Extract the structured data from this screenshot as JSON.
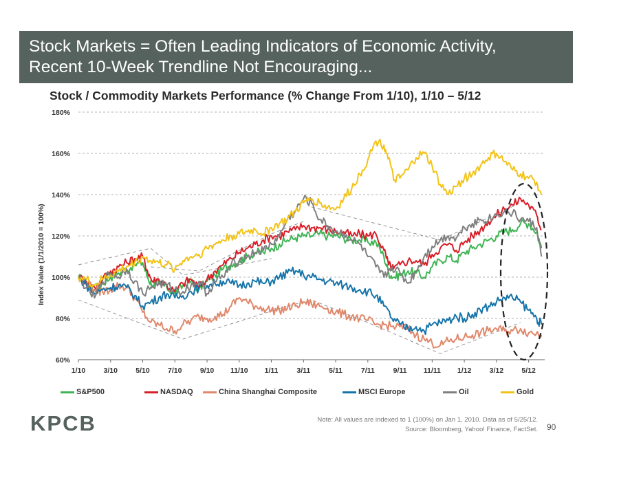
{
  "header": {
    "title_line1": "Stock Markets = Often Leading Indicators of Economic Activity,",
    "title_line2": "Recent 10-Week Trendline Not Encouraging..."
  },
  "chart_data": {
    "type": "line",
    "title": "Stock / Commodity Markets Performance (% Change From 1/10), 1/10 – 5/12",
    "ylabel": "Index Value (1/1/2010 = 100%)",
    "xlabel": "",
    "x_ticks": [
      "1/10",
      "3/10",
      "5/10",
      "7/10",
      "9/10",
      "11/10",
      "1/11",
      "3/11",
      "5/11",
      "7/11",
      "9/11",
      "11/11",
      "1/12",
      "3/12",
      "5/12"
    ],
    "y_ticks": [
      "60%",
      "80%",
      "100%",
      "120%",
      "140%",
      "160%",
      "180%"
    ],
    "ylim": [
      60,
      180
    ],
    "x_range_months": [
      0,
      29
    ],
    "grid": "horizontal dashed",
    "legend": "bottom",
    "series": [
      {
        "name": "S&P500",
        "color": "#3fb454",
        "x": [
          0,
          0.5,
          1,
          1.5,
          2,
          2.5,
          3,
          3.5,
          4,
          4.3,
          4.6,
          5,
          5.5,
          6,
          6.5,
          7,
          7.5,
          8,
          8.5,
          9,
          9.5,
          10,
          10.5,
          11,
          11.5,
          12,
          12.5,
          13,
          13.5,
          14,
          14.5,
          15,
          15.5,
          16,
          16.5,
          17,
          17.5,
          18,
          18.5,
          19,
          19.3,
          19.6,
          20,
          20.5,
          21,
          21.5,
          22,
          22.5,
          23,
          23.5,
          24,
          24.5,
          25,
          25.5,
          26,
          26.5,
          27,
          27.5,
          28,
          28.5,
          28.8
        ],
        "y": [
          100,
          97,
          94,
          97,
          100,
          102,
          104,
          106,
          107,
          100,
          96,
          97,
          95,
          92,
          96,
          98,
          94,
          98,
          101,
          104,
          106,
          108,
          110,
          112,
          112,
          114,
          116,
          118,
          119,
          120,
          120,
          121,
          120,
          120,
          119,
          118,
          118,
          117,
          117,
          110,
          102,
          100,
          101,
          103,
          102,
          100,
          105,
          108,
          110,
          108,
          112,
          114,
          116,
          118,
          120,
          122,
          123,
          126,
          126,
          122,
          114
        ]
      },
      {
        "name": "NASDAQ",
        "color": "#d81e28",
        "x": [
          0,
          0.5,
          1,
          1.5,
          2,
          2.5,
          3,
          3.5,
          4,
          4.3,
          4.6,
          5,
          5.5,
          6,
          6.5,
          7,
          7.5,
          8,
          8.5,
          9,
          9.5,
          10,
          10.5,
          11,
          11.5,
          12,
          12.5,
          13,
          13.5,
          14,
          14.5,
          15,
          15.5,
          16,
          16.5,
          17,
          17.5,
          18,
          18.5,
          19,
          19.3,
          19.6,
          20,
          20.5,
          21,
          21.5,
          22,
          22.5,
          23,
          23.5,
          24,
          24.5,
          25,
          25.5,
          26,
          26.5,
          27,
          27.5,
          28,
          28.5,
          28.8
        ],
        "y": [
          100,
          98,
          95,
          99,
          103,
          105,
          107,
          109,
          110,
          103,
          98,
          99,
          96,
          93,
          97,
          99,
          95,
          99,
          103,
          106,
          109,
          112,
          114,
          116,
          118,
          120,
          120,
          122,
          123,
          125,
          124,
          124,
          123,
          122,
          122,
          120,
          121,
          120,
          121,
          113,
          106,
          104,
          106,
          108,
          108,
          106,
          111,
          114,
          116,
          113,
          117,
          120,
          123,
          127,
          130,
          133,
          135,
          138,
          135,
          130,
          123
        ]
      },
      {
        "name": "China Shanghai Composite",
        "color": "#e0876a",
        "x": [
          0,
          0.5,
          1,
          1.5,
          2,
          2.5,
          3,
          3.5,
          4,
          4.5,
          5,
          5.5,
          6,
          6.5,
          7,
          7.5,
          8,
          8.5,
          9,
          9.5,
          10,
          10.5,
          11,
          11.5,
          12,
          12.5,
          13,
          13.5,
          14,
          14.5,
          15,
          15.5,
          16,
          16.5,
          17,
          17.5,
          18,
          18.5,
          19,
          19.5,
          20,
          20.5,
          21,
          21.5,
          22,
          22.5,
          23,
          23.5,
          24,
          24.5,
          25,
          25.5,
          26,
          26.5,
          27,
          27.5,
          28,
          28.5,
          28.8
        ],
        "y": [
          100,
          97,
          94,
          93,
          94,
          96,
          95,
          90,
          83,
          78,
          77,
          75,
          74,
          77,
          79,
          81,
          80,
          81,
          82,
          86,
          90,
          88,
          86,
          85,
          84,
          84,
          85,
          86,
          88,
          87,
          86,
          85,
          83,
          82,
          81,
          80,
          79,
          77,
          77,
          76,
          76,
          75,
          72,
          70,
          68,
          67,
          69,
          70,
          71,
          72,
          73,
          74,
          75,
          74,
          74,
          75,
          73,
          73,
          72
        ]
      },
      {
        "name": "MSCI Europe",
        "color": "#1574a9",
        "x": [
          0,
          0.5,
          1,
          1.5,
          2,
          2.5,
          3,
          3.5,
          4,
          4.5,
          5,
          5.5,
          6,
          6.5,
          7,
          7.5,
          8,
          8.5,
          9,
          9.5,
          10,
          10.5,
          11,
          11.5,
          12,
          12.5,
          13,
          13.5,
          14,
          14.5,
          15,
          15.5,
          16,
          16.5,
          17,
          17.5,
          18,
          18.5,
          19,
          19.5,
          20,
          20.5,
          21,
          21.5,
          22,
          22.5,
          23,
          23.5,
          24,
          24.5,
          25,
          25.5,
          26,
          26.5,
          27,
          27.5,
          28,
          28.5,
          28.8
        ],
        "y": [
          100,
          96,
          92,
          94,
          95,
          96,
          95,
          91,
          86,
          88,
          90,
          92,
          90,
          91,
          93,
          95,
          96,
          97,
          98,
          97,
          96,
          97,
          98,
          97,
          98,
          100,
          102,
          103,
          101,
          100,
          99,
          98,
          97,
          96,
          95,
          94,
          93,
          91,
          86,
          80,
          77,
          75,
          76,
          74,
          77,
          78,
          79,
          81,
          80,
          82,
          84,
          86,
          88,
          90,
          90,
          88,
          84,
          80,
          77
        ]
      },
      {
        "name": "Oil",
        "color": "#7f7f7f",
        "x": [
          0,
          0.5,
          1,
          1.5,
          2,
          2.5,
          3,
          3.5,
          4,
          4.5,
          5,
          5.5,
          6,
          6.5,
          7,
          7.5,
          8,
          8.5,
          9,
          9.5,
          10,
          10.5,
          11,
          11.5,
          12,
          12.5,
          13,
          13.5,
          14,
          14.5,
          15,
          15.5,
          16,
          16.5,
          17,
          17.5,
          18,
          18.5,
          19,
          19.5,
          20,
          20.5,
          21,
          21.5,
          22,
          22.5,
          23,
          23.5,
          24,
          24.5,
          25,
          25.5,
          26,
          26.5,
          27,
          27.5,
          28,
          28.5,
          28.8
        ],
        "y": [
          100,
          95,
          90,
          98,
          102,
          100,
          104,
          98,
          92,
          95,
          97,
          96,
          94,
          93,
          96,
          98,
          92,
          98,
          100,
          106,
          108,
          110,
          112,
          113,
          116,
          120,
          128,
          132,
          138,
          136,
          128,
          125,
          122,
          121,
          118,
          116,
          110,
          105,
          100,
          105,
          102,
          97,
          103,
          110,
          115,
          118,
          120,
          119,
          124,
          126,
          128,
          128,
          130,
          132,
          131,
          128,
          127,
          124,
          110
        ]
      },
      {
        "name": "Gold",
        "color": "#f2c317",
        "x": [
          0,
          0.5,
          1,
          1.5,
          2,
          2.5,
          3,
          3.5,
          4,
          4.5,
          5,
          5.5,
          6,
          6.5,
          7,
          7.5,
          8,
          8.5,
          9,
          9.5,
          10,
          10.5,
          11,
          11.5,
          12,
          12.5,
          13,
          13.5,
          14,
          14.5,
          15,
          15.5,
          16,
          16.5,
          17,
          17.5,
          18,
          18.5,
          19,
          19.3,
          19.6,
          20,
          20.5,
          21,
          21.5,
          22,
          22.5,
          23,
          23.5,
          24,
          24.5,
          25,
          25.5,
          26,
          26.5,
          27,
          27.5,
          28,
          28.5,
          28.8
        ],
        "y": [
          100,
          99,
          96,
          99,
          101,
          103,
          105,
          107,
          110,
          108,
          107,
          106,
          104,
          108,
          110,
          111,
          114,
          116,
          118,
          120,
          121,
          122,
          123,
          121,
          124,
          126,
          128,
          132,
          136,
          138,
          136,
          134,
          133,
          138,
          143,
          150,
          157,
          166,
          164,
          158,
          147,
          148,
          152,
          158,
          160,
          154,
          145,
          140,
          144,
          148,
          150,
          154,
          158,
          160,
          156,
          152,
          150,
          148,
          146,
          140
        ]
      }
    ]
  },
  "footer": {
    "logo": "KPCB",
    "note_line1": "Note: All values are indexed to 1 (100%) on Jan 1, 2010. Data as of 5/25/12.",
    "note_line2": "Source: Bloomberg, Yahoo! Finance, FactSet.",
    "page_number": "90"
  }
}
